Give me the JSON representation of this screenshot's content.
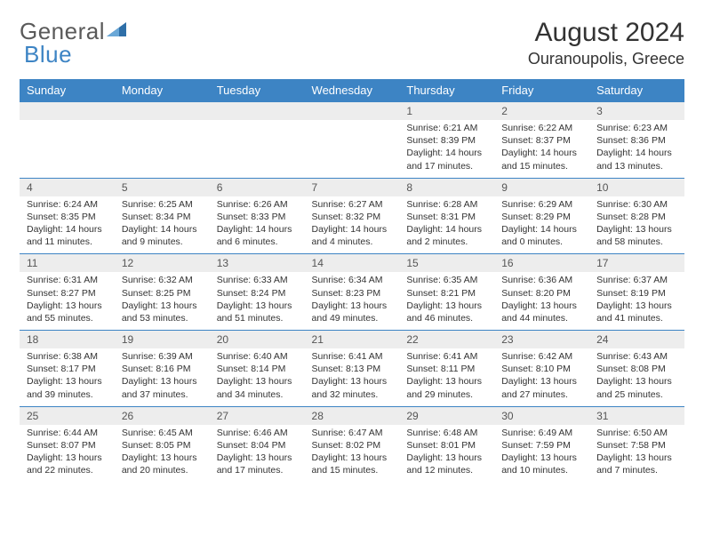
{
  "logo": {
    "text1": "General",
    "text2": "Blue",
    "icon_color": "#2f6fa8"
  },
  "header": {
    "month_title": "August 2024",
    "location": "Ouranoupolis, Greece"
  },
  "colors": {
    "header_bg": "#3d84c4",
    "header_text": "#ffffff",
    "daynum_bg": "#ededed",
    "border": "#3d84c4",
    "body_text": "#333333",
    "page_bg": "#ffffff"
  },
  "day_labels": [
    "Sunday",
    "Monday",
    "Tuesday",
    "Wednesday",
    "Thursday",
    "Friday",
    "Saturday"
  ],
  "weeks": [
    [
      {
        "n": "",
        "sr": "",
        "ss": "",
        "dl": ""
      },
      {
        "n": "",
        "sr": "",
        "ss": "",
        "dl": ""
      },
      {
        "n": "",
        "sr": "",
        "ss": "",
        "dl": ""
      },
      {
        "n": "",
        "sr": "",
        "ss": "",
        "dl": ""
      },
      {
        "n": "1",
        "sr": "Sunrise: 6:21 AM",
        "ss": "Sunset: 8:39 PM",
        "dl": "Daylight: 14 hours and 17 minutes."
      },
      {
        "n": "2",
        "sr": "Sunrise: 6:22 AM",
        "ss": "Sunset: 8:37 PM",
        "dl": "Daylight: 14 hours and 15 minutes."
      },
      {
        "n": "3",
        "sr": "Sunrise: 6:23 AM",
        "ss": "Sunset: 8:36 PM",
        "dl": "Daylight: 14 hours and 13 minutes."
      }
    ],
    [
      {
        "n": "4",
        "sr": "Sunrise: 6:24 AM",
        "ss": "Sunset: 8:35 PM",
        "dl": "Daylight: 14 hours and 11 minutes."
      },
      {
        "n": "5",
        "sr": "Sunrise: 6:25 AM",
        "ss": "Sunset: 8:34 PM",
        "dl": "Daylight: 14 hours and 9 minutes."
      },
      {
        "n": "6",
        "sr": "Sunrise: 6:26 AM",
        "ss": "Sunset: 8:33 PM",
        "dl": "Daylight: 14 hours and 6 minutes."
      },
      {
        "n": "7",
        "sr": "Sunrise: 6:27 AM",
        "ss": "Sunset: 8:32 PM",
        "dl": "Daylight: 14 hours and 4 minutes."
      },
      {
        "n": "8",
        "sr": "Sunrise: 6:28 AM",
        "ss": "Sunset: 8:31 PM",
        "dl": "Daylight: 14 hours and 2 minutes."
      },
      {
        "n": "9",
        "sr": "Sunrise: 6:29 AM",
        "ss": "Sunset: 8:29 PM",
        "dl": "Daylight: 14 hours and 0 minutes."
      },
      {
        "n": "10",
        "sr": "Sunrise: 6:30 AM",
        "ss": "Sunset: 8:28 PM",
        "dl": "Daylight: 13 hours and 58 minutes."
      }
    ],
    [
      {
        "n": "11",
        "sr": "Sunrise: 6:31 AM",
        "ss": "Sunset: 8:27 PM",
        "dl": "Daylight: 13 hours and 55 minutes."
      },
      {
        "n": "12",
        "sr": "Sunrise: 6:32 AM",
        "ss": "Sunset: 8:25 PM",
        "dl": "Daylight: 13 hours and 53 minutes."
      },
      {
        "n": "13",
        "sr": "Sunrise: 6:33 AM",
        "ss": "Sunset: 8:24 PM",
        "dl": "Daylight: 13 hours and 51 minutes."
      },
      {
        "n": "14",
        "sr": "Sunrise: 6:34 AM",
        "ss": "Sunset: 8:23 PM",
        "dl": "Daylight: 13 hours and 49 minutes."
      },
      {
        "n": "15",
        "sr": "Sunrise: 6:35 AM",
        "ss": "Sunset: 8:21 PM",
        "dl": "Daylight: 13 hours and 46 minutes."
      },
      {
        "n": "16",
        "sr": "Sunrise: 6:36 AM",
        "ss": "Sunset: 8:20 PM",
        "dl": "Daylight: 13 hours and 44 minutes."
      },
      {
        "n": "17",
        "sr": "Sunrise: 6:37 AM",
        "ss": "Sunset: 8:19 PM",
        "dl": "Daylight: 13 hours and 41 minutes."
      }
    ],
    [
      {
        "n": "18",
        "sr": "Sunrise: 6:38 AM",
        "ss": "Sunset: 8:17 PM",
        "dl": "Daylight: 13 hours and 39 minutes."
      },
      {
        "n": "19",
        "sr": "Sunrise: 6:39 AM",
        "ss": "Sunset: 8:16 PM",
        "dl": "Daylight: 13 hours and 37 minutes."
      },
      {
        "n": "20",
        "sr": "Sunrise: 6:40 AM",
        "ss": "Sunset: 8:14 PM",
        "dl": "Daylight: 13 hours and 34 minutes."
      },
      {
        "n": "21",
        "sr": "Sunrise: 6:41 AM",
        "ss": "Sunset: 8:13 PM",
        "dl": "Daylight: 13 hours and 32 minutes."
      },
      {
        "n": "22",
        "sr": "Sunrise: 6:41 AM",
        "ss": "Sunset: 8:11 PM",
        "dl": "Daylight: 13 hours and 29 minutes."
      },
      {
        "n": "23",
        "sr": "Sunrise: 6:42 AM",
        "ss": "Sunset: 8:10 PM",
        "dl": "Daylight: 13 hours and 27 minutes."
      },
      {
        "n": "24",
        "sr": "Sunrise: 6:43 AM",
        "ss": "Sunset: 8:08 PM",
        "dl": "Daylight: 13 hours and 25 minutes."
      }
    ],
    [
      {
        "n": "25",
        "sr": "Sunrise: 6:44 AM",
        "ss": "Sunset: 8:07 PM",
        "dl": "Daylight: 13 hours and 22 minutes."
      },
      {
        "n": "26",
        "sr": "Sunrise: 6:45 AM",
        "ss": "Sunset: 8:05 PM",
        "dl": "Daylight: 13 hours and 20 minutes."
      },
      {
        "n": "27",
        "sr": "Sunrise: 6:46 AM",
        "ss": "Sunset: 8:04 PM",
        "dl": "Daylight: 13 hours and 17 minutes."
      },
      {
        "n": "28",
        "sr": "Sunrise: 6:47 AM",
        "ss": "Sunset: 8:02 PM",
        "dl": "Daylight: 13 hours and 15 minutes."
      },
      {
        "n": "29",
        "sr": "Sunrise: 6:48 AM",
        "ss": "Sunset: 8:01 PM",
        "dl": "Daylight: 13 hours and 12 minutes."
      },
      {
        "n": "30",
        "sr": "Sunrise: 6:49 AM",
        "ss": "Sunset: 7:59 PM",
        "dl": "Daylight: 13 hours and 10 minutes."
      },
      {
        "n": "31",
        "sr": "Sunrise: 6:50 AM",
        "ss": "Sunset: 7:58 PM",
        "dl": "Daylight: 13 hours and 7 minutes."
      }
    ]
  ]
}
